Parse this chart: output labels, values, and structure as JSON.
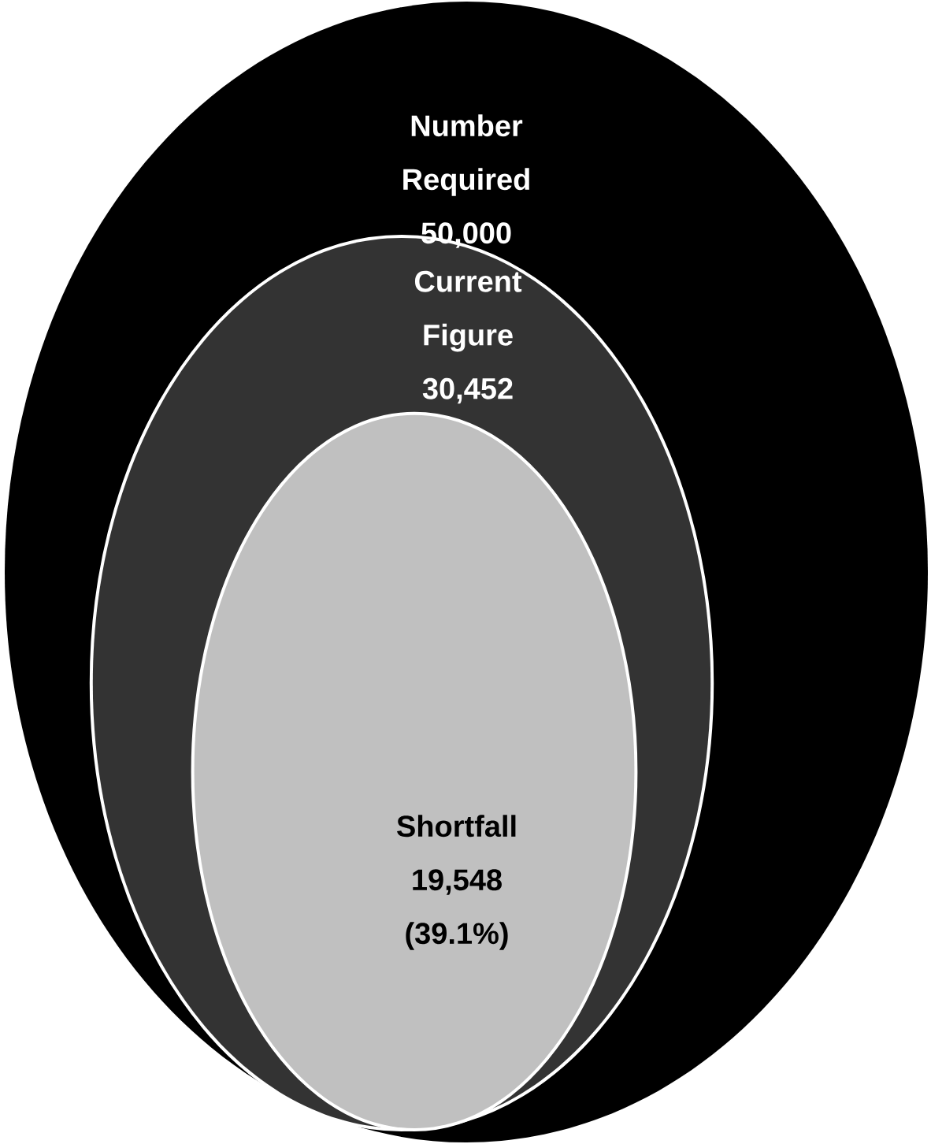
{
  "chart_data": {
    "type": "other",
    "categories": [
      "Number Required",
      "Current Figure",
      "Shortfall"
    ],
    "values": [
      50000,
      30452,
      19548
    ],
    "colors": [
      "#000000",
      "#333333",
      "#c0c0c0"
    ],
    "value_labels": [
      "50,000",
      "30,452",
      "19,548"
    ],
    "annotations": [
      "(39.1%)"
    ]
  }
}
